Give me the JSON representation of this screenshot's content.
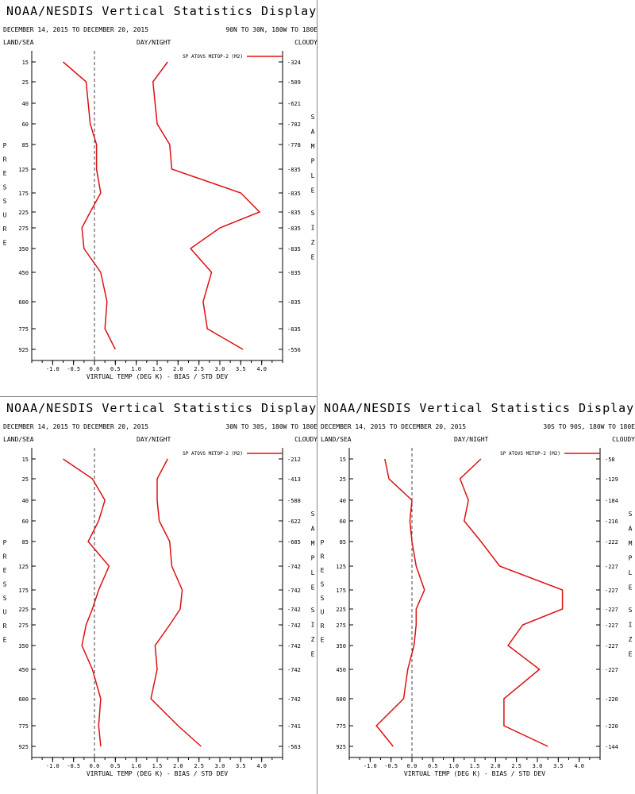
{
  "header": {
    "title": "NOAA/NESDIS Vertical Statistics Display",
    "date_range": "DECEMBER 14, 2015 TO DECEMBER 20, 2015",
    "left_label": "LAND/SEA",
    "center_label": "DAY/NIGHT",
    "right_label": "CLOUDY"
  },
  "colors": {
    "series": "#dd1111",
    "axis": "#000000",
    "zero_line": "#444444"
  },
  "chart_data": [
    {
      "type": "line",
      "region": "90N TO 30N, 180W TO 180E",
      "xlabel": "VIRTUAL TEMP (DEG K) - BIAS / STD DEV",
      "ylabel": "PRESSURE",
      "y2label": "SAMPLE SIZE",
      "legend": "SP ATOVS METOP-2 (M2)",
      "legend_position": "top-right",
      "xlim": [
        -1.5,
        4.5
      ],
      "xticks": [
        "-1.0",
        "-0.5",
        "0.0",
        "0.5",
        "1.0",
        "1.5",
        "2.0",
        "2.5",
        "3.0",
        "3.5",
        "4.0"
      ],
      "pressure_levels": [
        "15",
        "25",
        "40",
        "60",
        "85",
        "125",
        "175",
        "225",
        "275",
        "350",
        "450",
        "600",
        "775",
        "925"
      ],
      "sample_size": [
        "324",
        "509",
        "621",
        "702",
        "778",
        "835",
        "835",
        "835",
        "835",
        "835",
        "835",
        "835",
        "835",
        "556"
      ],
      "series": [
        {
          "name": "BIAS",
          "values": [
            -0.75,
            -0.2,
            -0.15,
            -0.1,
            0.05,
            0.05,
            0.15,
            -0.1,
            -0.3,
            -0.25,
            0.15,
            0.3,
            0.25,
            0.5
          ]
        },
        {
          "name": "STD DEV",
          "values": [
            1.75,
            1.4,
            1.45,
            1.5,
            1.8,
            1.85,
            3.5,
            3.95,
            3.0,
            2.3,
            2.8,
            2.6,
            2.7,
            3.55
          ]
        }
      ]
    },
    {
      "type": "line",
      "region": "30N TO 30S, 180W TO 180E",
      "xlabel": "VIRTUAL TEMP (DEG K) - BIAS / STD DEV",
      "ylabel": "PRESSURE",
      "y2label": "SAMPLE SIZE",
      "legend": "SP ATOVS METOP-2 (M2)",
      "legend_position": "top-right",
      "xlim": [
        -1.5,
        4.5
      ],
      "xticks": [
        "-1.0",
        "-0.5",
        "0.0",
        "0.5",
        "1.0",
        "1.5",
        "2.0",
        "2.5",
        "3.0",
        "3.5",
        "4.0"
      ],
      "pressure_levels": [
        "15",
        "25",
        "40",
        "60",
        "85",
        "125",
        "175",
        "225",
        "275",
        "350",
        "450",
        "600",
        "775",
        "925"
      ],
      "sample_size": [
        "212",
        "413",
        "588",
        "622",
        "685",
        "742",
        "742",
        "742",
        "742",
        "742",
        "742",
        "742",
        "741",
        "563"
      ],
      "series": [
        {
          "name": "BIAS",
          "values": [
            -0.75,
            -0.05,
            0.25,
            0.1,
            -0.15,
            0.35,
            0.1,
            -0.05,
            -0.2,
            -0.3,
            -0.05,
            0.15,
            0.1,
            0.15
          ]
        },
        {
          "name": "STD DEV",
          "values": [
            1.75,
            1.5,
            1.5,
            1.55,
            1.8,
            1.85,
            2.1,
            2.05,
            1.8,
            1.45,
            1.5,
            1.35,
            2.0,
            2.55
          ]
        }
      ]
    },
    {
      "type": "line",
      "region": "30S TO 90S, 180W TO 180E",
      "xlabel": "VIRTUAL TEMP (DEG K) - BIAS / STD DEV",
      "ylabel": "PRESSURE",
      "y2label": "SAMPLE SIZE",
      "legend": "SP ATOVS METOP-2 (M2)",
      "legend_position": "top-right",
      "xlim": [
        -1.5,
        4.5
      ],
      "xticks": [
        "-1.0",
        "-0.5",
        "0.0",
        "0.5",
        "1.0",
        "1.5",
        "2.0",
        "2.5",
        "3.0",
        "3.5",
        "4.0"
      ],
      "pressure_levels": [
        "15",
        "25",
        "40",
        "60",
        "85",
        "125",
        "175",
        "225",
        "275",
        "350",
        "450",
        "600",
        "775",
        "925"
      ],
      "sample_size": [
        "58",
        "129",
        "184",
        "216",
        "222",
        "227",
        "227",
        "227",
        "227",
        "227",
        "227",
        "220",
        "220",
        "144"
      ],
      "series": [
        {
          "name": "BIAS",
          "values": [
            -0.65,
            -0.55,
            0.0,
            -0.05,
            0.0,
            0.1,
            0.3,
            0.1,
            0.1,
            0.05,
            -0.1,
            -0.2,
            -0.85,
            -0.45
          ]
        },
        {
          "name": "STD DEV",
          "values": [
            1.65,
            1.15,
            1.35,
            1.25,
            1.65,
            2.1,
            3.6,
            3.6,
            2.65,
            2.3,
            3.05,
            2.2,
            2.2,
            3.25
          ]
        }
      ]
    }
  ]
}
